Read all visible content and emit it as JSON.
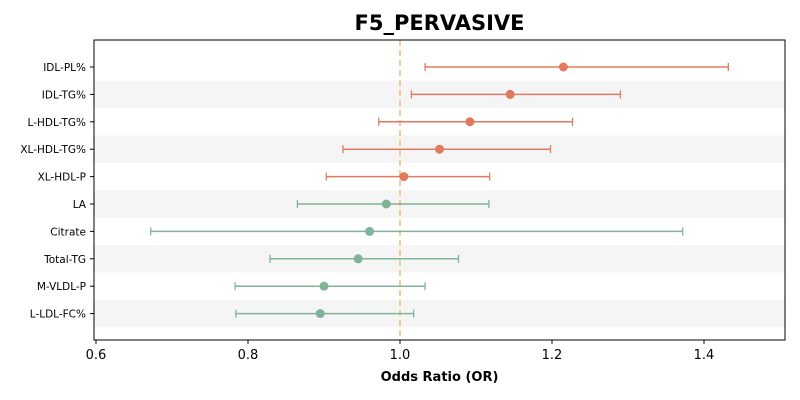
{
  "chart_data": {
    "type": "forest",
    "title": "F5_PERVASIVE",
    "xlabel": "Odds Ratio (OR)",
    "xlim": [
      0.6,
      1.51
    ],
    "xticks": [
      "0.6",
      "0.8",
      "1.0",
      "1.2",
      "1.4"
    ],
    "reference_line": 1.0,
    "colors": {
      "risk": "#e07a5f",
      "protective": "#81b29a",
      "reference": "#f4c07a",
      "band": "#f5f5f5"
    },
    "rows": [
      {
        "label": "IDL-PL%",
        "or": 1.215,
        "lower": 1.033,
        "upper": 1.432,
        "group": "risk"
      },
      {
        "label": "IDL-TG%",
        "or": 1.145,
        "lower": 1.015,
        "upper": 1.29,
        "group": "risk"
      },
      {
        "label": "L-HDL-TG%",
        "or": 1.092,
        "lower": 0.972,
        "upper": 1.227,
        "group": "risk"
      },
      {
        "label": "XL-HDL-TG%",
        "or": 1.052,
        "lower": 0.925,
        "upper": 1.198,
        "group": "risk"
      },
      {
        "label": "XL-HDL-P",
        "or": 1.005,
        "lower": 0.903,
        "upper": 1.118,
        "group": "risk"
      },
      {
        "label": "LA",
        "or": 0.982,
        "lower": 0.865,
        "upper": 1.117,
        "group": "protective"
      },
      {
        "label": "Citrate",
        "or": 0.96,
        "lower": 0.672,
        "upper": 1.372,
        "group": "protective"
      },
      {
        "label": "Total-TG",
        "or": 0.945,
        "lower": 0.829,
        "upper": 1.077,
        "group": "protective"
      },
      {
        "label": "M-VLDL-P",
        "or": 0.9,
        "lower": 0.783,
        "upper": 1.033,
        "group": "protective"
      },
      {
        "label": "L-LDL-FC%",
        "or": 0.895,
        "lower": 0.784,
        "upper": 1.018,
        "group": "protective"
      }
    ]
  }
}
